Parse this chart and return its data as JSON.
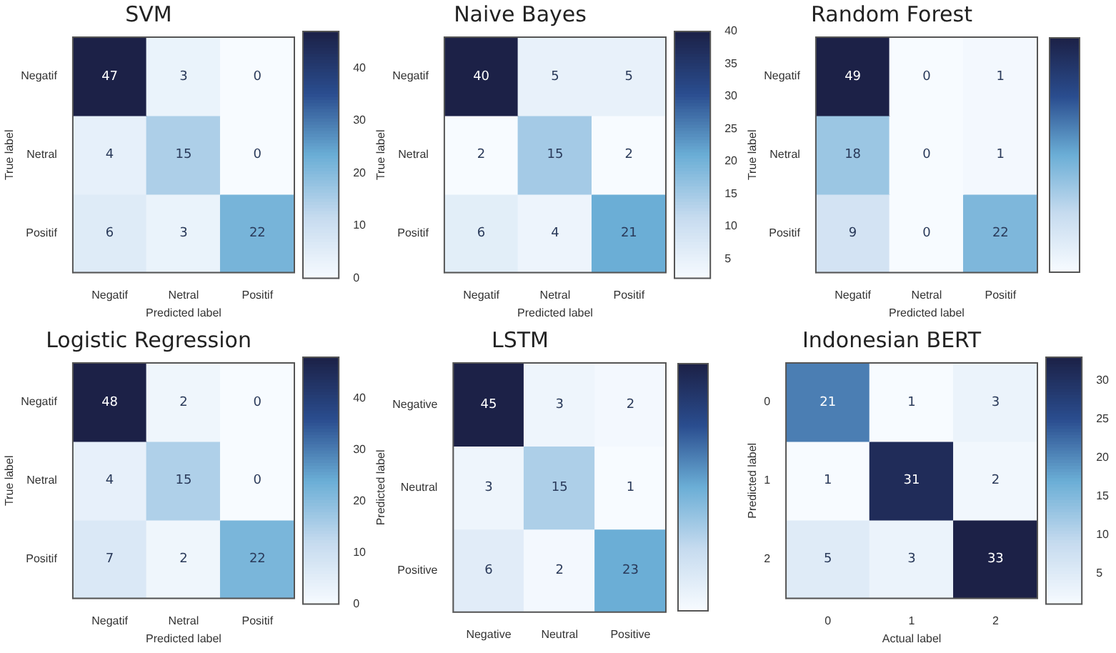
{
  "chart_data": [
    {
      "type": "heatmap",
      "title": "SVM",
      "xlabel": "Predicted label",
      "ylabel": "True label",
      "categories": [
        "Negatif",
        "Netral",
        "Positif"
      ],
      "y_categories": [
        "Negatif",
        "Netral",
        "Positif"
      ],
      "cells": [
        [
          47,
          3,
          0
        ],
        [
          4,
          15,
          0
        ],
        [
          6,
          3,
          22
        ]
      ],
      "data_labels": true,
      "clim": [
        0,
        47
      ],
      "cticks": [
        0,
        10,
        20,
        30,
        40
      ]
    },
    {
      "type": "heatmap",
      "title": "Naive Bayes",
      "xlabel": "Predicted label",
      "ylabel": "True label",
      "categories": [
        "Negatif",
        "Netral",
        "Positif"
      ],
      "y_categories": [
        "Negatif",
        "Netral",
        "Positif"
      ],
      "cells": [
        [
          40,
          5,
          5
        ],
        [
          2,
          15,
          2
        ],
        [
          6,
          4,
          21
        ]
      ],
      "data_labels": true,
      "clim": [
        2,
        40
      ],
      "cticks": [
        5,
        10,
        15,
        20,
        25,
        30,
        35,
        40
      ]
    },
    {
      "type": "heatmap",
      "title": "Random Forest",
      "xlabel": "Predicted label",
      "ylabel": "True label",
      "categories": [
        "Negatif",
        "Netral",
        "Positif"
      ],
      "y_categories": [
        "Negatif",
        "Netral",
        "Positif"
      ],
      "cells": [
        [
          49,
          0,
          1
        ],
        [
          18,
          0,
          1
        ],
        [
          9,
          0,
          22
        ]
      ],
      "data_labels": true
    },
    {
      "type": "heatmap",
      "title": "Logistic Regression",
      "xlabel": "Predicted label",
      "ylabel": "True label",
      "categories": [
        "Negatif",
        "Netral",
        "Positif"
      ],
      "y_categories": [
        "Negatif",
        "Netral",
        "Positif"
      ],
      "cells": [
        [
          48,
          2,
          0
        ],
        [
          4,
          15,
          0
        ],
        [
          7,
          2,
          22
        ]
      ],
      "data_labels": true,
      "clim": [
        0,
        48
      ],
      "cticks": [
        0,
        10,
        20,
        30,
        40
      ]
    },
    {
      "type": "heatmap",
      "title": "LSTM",
      "ylabel": "Predicted label",
      "categories": [
        "Negative",
        "Neutral",
        "Positive"
      ],
      "y_categories": [
        "Negative",
        "Neutral",
        "Positive"
      ],
      "cells": [
        [
          45,
          3,
          2
        ],
        [
          3,
          15,
          1
        ],
        [
          6,
          2,
          23
        ]
      ],
      "data_labels": true
    },
    {
      "type": "heatmap",
      "title": "Indonesian BERT",
      "xlabel": "Actual label",
      "ylabel": "Predicted label",
      "categories": [
        "0",
        "1",
        "2"
      ],
      "y_categories": [
        "0",
        "1",
        "2"
      ],
      "cells": [
        [
          21,
          1,
          3
        ],
        [
          1,
          31,
          2
        ],
        [
          5,
          3,
          33
        ]
      ],
      "data_labels": true,
      "clim": [
        1,
        33
      ],
      "cticks": [
        5,
        10,
        15,
        20,
        25,
        30
      ]
    }
  ]
}
